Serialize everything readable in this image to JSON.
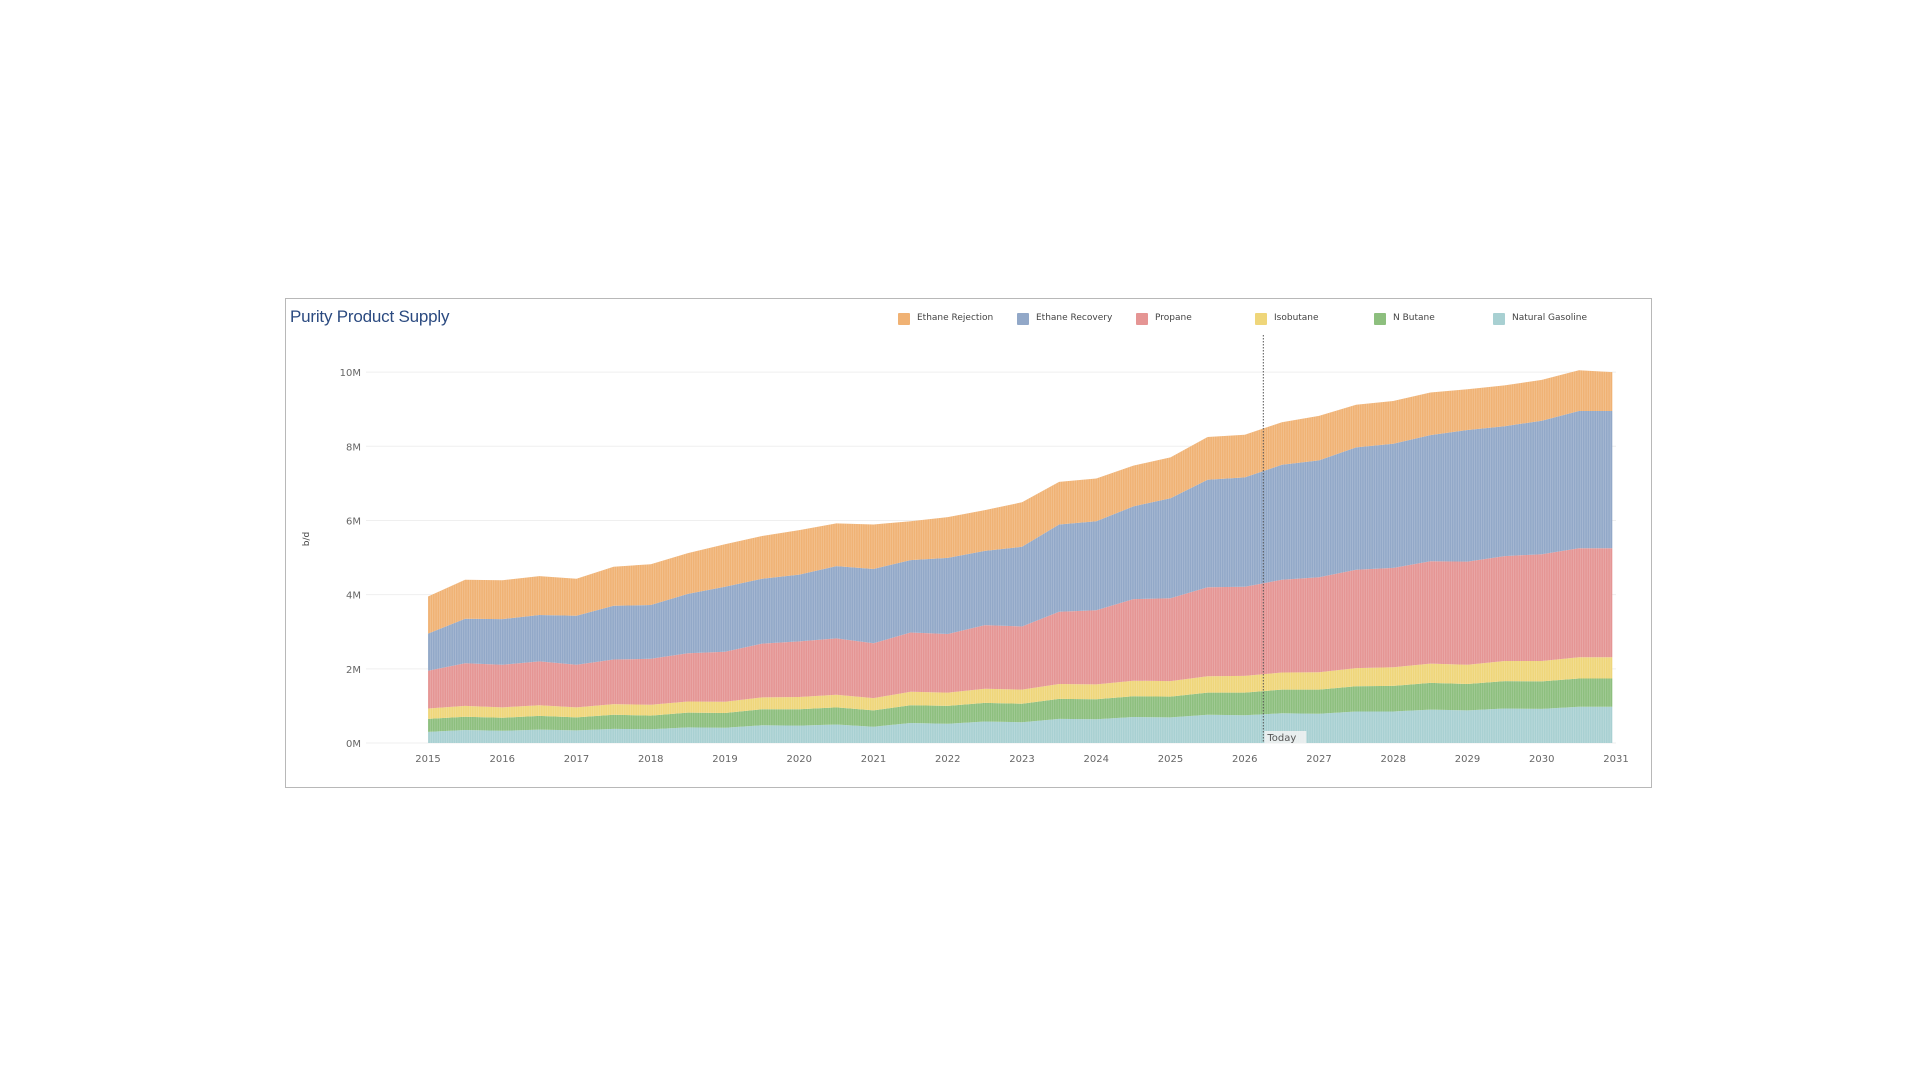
{
  "chart_data": {
    "type": "area",
    "stacked": true,
    "title": "Purity Product Supply",
    "xlabel": "",
    "ylabel": "b/d",
    "xlim": [
      2015,
      2031
    ],
    "ylim": [
      0,
      11000000
    ],
    "grid": true,
    "legend": "top-right",
    "y_ticks": [
      {
        "value": 0,
        "label": "0M"
      },
      {
        "value": 2000000,
        "label": "2M"
      },
      {
        "value": 4000000,
        "label": "4M"
      },
      {
        "value": 6000000,
        "label": "6M"
      },
      {
        "value": 8000000,
        "label": "8M"
      },
      {
        "value": 10000000,
        "label": "10M"
      }
    ],
    "x_ticks": [
      "2015",
      "2016",
      "2017",
      "2018",
      "2019",
      "2020",
      "2021",
      "2022",
      "2023",
      "2024",
      "2025",
      "2026",
      "2027",
      "2028",
      "2029",
      "2030",
      "2031"
    ],
    "annotation": {
      "label": "Today",
      "x": 2026.25
    },
    "x": [
      2015.0,
      2015.5,
      2016.0,
      2016.5,
      2017.0,
      2017.5,
      2018.0,
      2018.5,
      2019.0,
      2019.5,
      2020.0,
      2020.5,
      2021.0,
      2021.5,
      2022.0,
      2022.5,
      2023.0,
      2023.5,
      2024.0,
      2024.5,
      2025.0,
      2025.5,
      2026.0,
      2026.5,
      2027.0,
      2027.5,
      2028.0,
      2028.5,
      2029.0,
      2029.5,
      2030.0,
      2030.5,
      2030.95
    ],
    "series": [
      {
        "name": "Natural Gasoline",
        "color": "#a8d0d2",
        "values": [
          300000,
          350000,
          330000,
          360000,
          340000,
          380000,
          370000,
          420000,
          410000,
          480000,
          470000,
          500000,
          440000,
          540000,
          520000,
          580000,
          560000,
          650000,
          640000,
          700000,
          690000,
          760000,
          750000,
          800000,
          790000,
          850000,
          850000,
          900000,
          880000,
          930000,
          920000,
          980000,
          980000
        ]
      },
      {
        "name": "N Butane",
        "color": "#8dbf7e",
        "values": [
          350000,
          360000,
          350000,
          370000,
          350000,
          380000,
          370000,
          400000,
          400000,
          430000,
          440000,
          460000,
          440000,
          480000,
          480000,
          500000,
          500000,
          540000,
          540000,
          560000,
          560000,
          600000,
          610000,
          640000,
          650000,
          680000,
          690000,
          720000,
          710000,
          740000,
          740000,
          760000,
          760000
        ]
      },
      {
        "name": "Isobutane",
        "color": "#efd67a",
        "values": [
          280000,
          290000,
          280000,
          290000,
          270000,
          290000,
          290000,
          300000,
          300000,
          320000,
          330000,
          340000,
          330000,
          360000,
          360000,
          380000,
          380000,
          400000,
          400000,
          420000,
          420000,
          440000,
          450000,
          460000,
          470000,
          490000,
          500000,
          520000,
          520000,
          540000,
          550000,
          570000,
          570000
        ]
      },
      {
        "name": "Propane",
        "color": "#e59594",
        "values": [
          1020000,
          1150000,
          1150000,
          1180000,
          1150000,
          1200000,
          1240000,
          1300000,
          1350000,
          1450000,
          1500000,
          1520000,
          1480000,
          1600000,
          1580000,
          1720000,
          1700000,
          1950000,
          2000000,
          2200000,
          2230000,
          2400000,
          2400000,
          2500000,
          2560000,
          2650000,
          2680000,
          2760000,
          2780000,
          2830000,
          2880000,
          2940000,
          2940000
        ]
      },
      {
        "name": "Ethane Recovery",
        "color": "#92a8c8",
        "values": [
          1000000,
          1200000,
          1230000,
          1250000,
          1320000,
          1450000,
          1450000,
          1600000,
          1750000,
          1750000,
          1800000,
          1950000,
          2000000,
          1950000,
          2050000,
          2000000,
          2150000,
          2350000,
          2400000,
          2500000,
          2700000,
          2900000,
          2950000,
          3100000,
          3150000,
          3300000,
          3350000,
          3400000,
          3550000,
          3500000,
          3600000,
          3700000,
          3700000
        ]
      },
      {
        "name": "Ethane Rejection",
        "color": "#f0b274",
        "values": [
          1000000,
          1050000,
          1050000,
          1050000,
          1000000,
          1050000,
          1100000,
          1100000,
          1150000,
          1150000,
          1200000,
          1150000,
          1200000,
          1050000,
          1100000,
          1100000,
          1200000,
          1150000,
          1150000,
          1100000,
          1100000,
          1150000,
          1150000,
          1150000,
          1200000,
          1150000,
          1150000,
          1150000,
          1100000,
          1100000,
          1100000,
          1100000,
          1050000
        ]
      }
    ]
  }
}
